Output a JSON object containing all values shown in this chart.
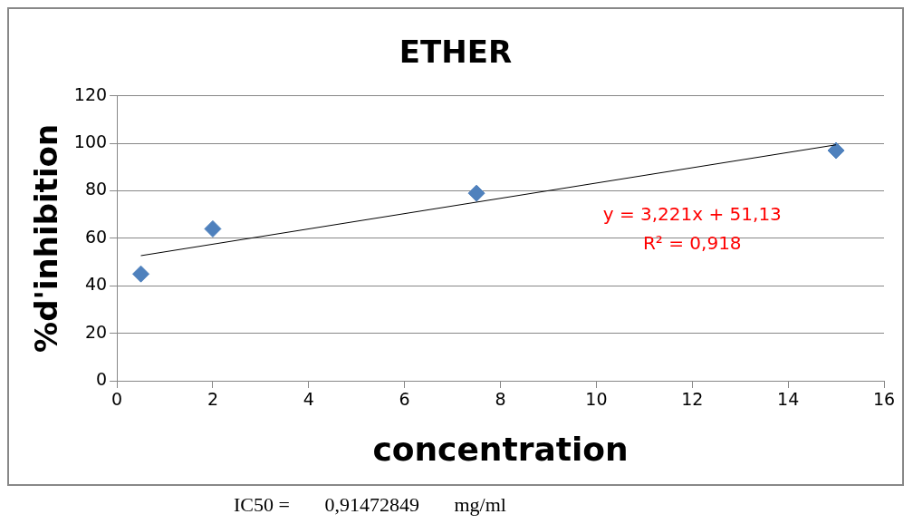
{
  "chart_data": {
    "type": "scatter",
    "title": "ETHER",
    "xlabel": "concentration",
    "ylabel": "%d'inhibition",
    "series": [
      {
        "color": "#4f81bd",
        "x": [
          0.5,
          2,
          7.5,
          15
        ],
        "values": [
          45,
          64,
          79,
          97
        ],
        "marker": "diamond"
      },
      {
        "type": "line",
        "color": "#000000",
        "x": [
          0.5,
          15
        ],
        "values": [
          52.7,
          99.4
        ],
        "marker": "none"
      }
    ],
    "xlim": [
      0,
      16
    ],
    "xticks": [
      0,
      2,
      4,
      6,
      8,
      10,
      12,
      14,
      16
    ],
    "ylim": [
      0,
      120
    ],
    "yticks": [
      0,
      20,
      40,
      60,
      80,
      100,
      120
    ],
    "grid": "y",
    "annotations": [
      "y = 3,221x + 51,13",
      "R² = 0,918",
      "IC50 =       0,91472849       mg/ml"
    ]
  }
}
